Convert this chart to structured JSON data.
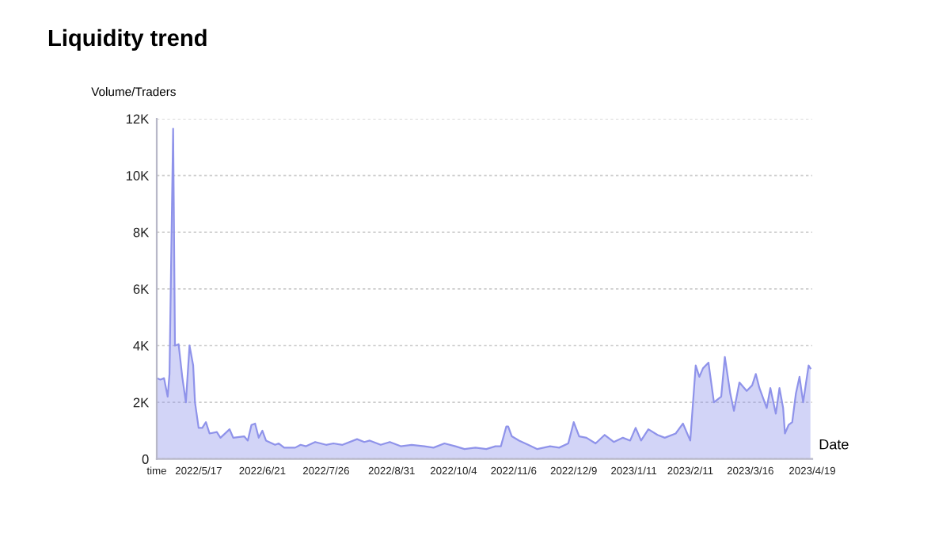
{
  "chart_data": {
    "type": "area",
    "title": "Liquidity trend",
    "ylabel": "Volume/Traders",
    "xlabel": "Date",
    "x": [
      "2022-04-24",
      "2022-04-26",
      "2022-04-28",
      "2022-04-30",
      "2022-05-01",
      "2022-05-03",
      "2022-05-04",
      "2022-05-06",
      "2022-05-08",
      "2022-05-10",
      "2022-05-12",
      "2022-05-14",
      "2022-05-15",
      "2022-05-17",
      "2022-05-19",
      "2022-05-21",
      "2022-05-23",
      "2022-05-27",
      "2022-05-29",
      "2022-06-03",
      "2022-06-05",
      "2022-06-11",
      "2022-06-13",
      "2022-06-15",
      "2022-06-17",
      "2022-06-19",
      "2022-06-21",
      "2022-06-23",
      "2022-06-28",
      "2022-06-30",
      "2022-07-03",
      "2022-07-09",
      "2022-07-12",
      "2022-07-15",
      "2022-07-20",
      "2022-07-26",
      "2022-07-30",
      "2022-08-04",
      "2022-08-12",
      "2022-08-16",
      "2022-08-19",
      "2022-08-25",
      "2022-08-30",
      "2022-09-05",
      "2022-09-11",
      "2022-09-18",
      "2022-09-23",
      "2022-09-29",
      "2022-10-05",
      "2022-10-10",
      "2022-10-16",
      "2022-10-22",
      "2022-10-27",
      "2022-10-30",
      "2022-11-02",
      "2022-11-03",
      "2022-11-05",
      "2022-11-09",
      "2022-11-14",
      "2022-11-19",
      "2022-11-26",
      "2022-12-01",
      "2022-12-06",
      "2022-12-09",
      "2022-12-12",
      "2022-12-16",
      "2022-12-21",
      "2022-12-26",
      "2022-12-31",
      "2023-01-05",
      "2023-01-09",
      "2023-01-12",
      "2023-01-15",
      "2023-01-19",
      "2023-01-24",
      "2023-01-28",
      "2023-02-03",
      "2023-02-07",
      "2023-02-11",
      "2023-02-14",
      "2023-02-16",
      "2023-02-18",
      "2023-02-21",
      "2023-02-24",
      "2023-02-28",
      "2023-03-02",
      "2023-03-05",
      "2023-03-07",
      "2023-03-10",
      "2023-03-14",
      "2023-03-17",
      "2023-03-19",
      "2023-03-21",
      "2023-03-25",
      "2023-03-27",
      "2023-03-30",
      "2023-04-01",
      "2023-04-03",
      "2023-04-04",
      "2023-04-06",
      "2023-04-08",
      "2023-04-10",
      "2023-04-12",
      "2023-04-14",
      "2023-04-17",
      "2023-04-18"
    ],
    "series": [
      {
        "color": "#8f93ea",
        "values": [
          2850,
          2800,
          2850,
          2200,
          3000,
          11650,
          4000,
          4050,
          2900,
          2000,
          4000,
          3300,
          2000,
          1100,
          1100,
          1300,
          900,
          950,
          750,
          1050,
          750,
          800,
          650,
          1200,
          1250,
          750,
          1000,
          650,
          500,
          550,
          400,
          400,
          500,
          450,
          600,
          500,
          550,
          500,
          700,
          600,
          650,
          500,
          600,
          450,
          500,
          450,
          400,
          550,
          450,
          350,
          400,
          350,
          450,
          450,
          1150,
          1150,
          800,
          650,
          500,
          350,
          450,
          400,
          550,
          1300,
          800,
          750,
          550,
          850,
          600,
          750,
          650,
          1100,
          650,
          1050,
          850,
          750,
          900,
          1250,
          650,
          3300,
          2900,
          3200,
          3400,
          2000,
          2200,
          3600,
          2300,
          1700,
          2700,
          2400,
          2600,
          3000,
          2500,
          1800,
          2500,
          1600,
          2500,
          1800,
          900,
          1200,
          1300,
          2300,
          2900,
          2000,
          3300,
          3200
        ]
      }
    ],
    "xlim": [
      "2022-04-24",
      "2023-04-19"
    ],
    "xticks": [
      {
        "value": "2022-04-24",
        "label": "time"
      },
      {
        "value": "2022-05-17",
        "label": "2022/5/17"
      },
      {
        "value": "2022-06-21",
        "label": "2022/6/21"
      },
      {
        "value": "2022-07-26",
        "label": "2022/7/26"
      },
      {
        "value": "2022-08-31",
        "label": "2022/8/31"
      },
      {
        "value": "2022-10-04",
        "label": "2022/10/4"
      },
      {
        "value": "2022-11-06",
        "label": "2022/11/6"
      },
      {
        "value": "2022-12-09",
        "label": "2022/12/9"
      },
      {
        "value": "2023-01-11",
        "label": "2023/1/11"
      },
      {
        "value": "2023-02-11",
        "label": "2023/2/11"
      },
      {
        "value": "2023-03-16",
        "label": "2023/3/16"
      },
      {
        "value": "2023-04-19",
        "label": "2023/4/19"
      }
    ],
    "ylim": [
      0,
      12000
    ],
    "yticks": [
      0,
      {
        "value": 2000,
        "label": "2K"
      },
      {
        "value": 4000,
        "label": "4K"
      },
      {
        "value": 6000,
        "label": "6K"
      },
      {
        "value": 8000,
        "label": "8K"
      },
      {
        "value": 10000,
        "label": "10K"
      },
      {
        "value": 12000,
        "label": "12K"
      }
    ],
    "grid": "y",
    "legend": false
  }
}
